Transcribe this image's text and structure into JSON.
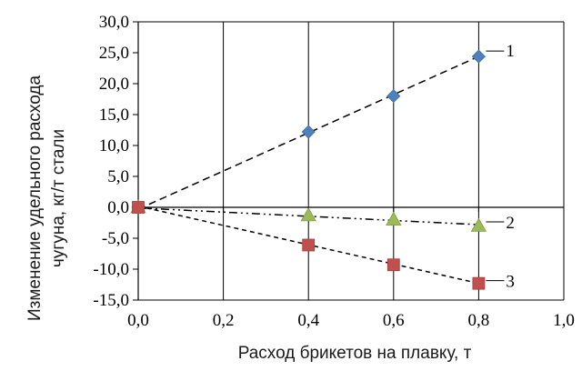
{
  "chart_data": {
    "type": "scatter",
    "title": "",
    "xlabel": "Расход брикетов на плавку, т",
    "ylabel_lines": [
      "Изменение удельного расхода",
      "чугуна, кг/т стали"
    ],
    "xlim": [
      0,
      1.0
    ],
    "ylim": [
      -15,
      30
    ],
    "x_ticks": [
      0,
      0.2,
      0.4,
      0.6,
      0.8,
      1.0
    ],
    "x_tick_labels": [
      "0,0",
      "0,2",
      "0,4",
      "0,6",
      "0,8",
      "1,0"
    ],
    "y_ticks": [
      30,
      25,
      20,
      15,
      10,
      5,
      0,
      -5,
      -10,
      -15
    ],
    "y_tick_labels": [
      "30,0",
      "25,0",
      "20,0",
      "15,0",
      "10,0",
      "5,0",
      "0,0",
      "-5,0",
      "-10,0",
      "-15,0"
    ],
    "grid": "vertical",
    "legend": "inline-labels",
    "series": [
      {
        "label": "1",
        "marker": "diamond",
        "color": "#4f81bd",
        "line_style": "dashed",
        "x": [
          0,
          0.4,
          0.6,
          0.8
        ],
        "y": [
          0,
          12.2,
          18.0,
          24.4
        ],
        "trend": [
          [
            0,
            -0.3
          ],
          [
            0.8,
            24.4
          ]
        ]
      },
      {
        "label": "2",
        "marker": "triangle",
        "color": "#9bbb59",
        "line_style": "dash-dot-dot",
        "x": [
          0,
          0.4,
          0.6,
          0.8
        ],
        "y": [
          0,
          -1.3,
          -2.0,
          -3.0
        ],
        "trend": [
          [
            0,
            -0.1
          ],
          [
            0.8,
            -2.8
          ]
        ]
      },
      {
        "label": "3",
        "marker": "square",
        "color": "#c0504d",
        "line_style": "dotted-dash",
        "x": [
          0,
          0.4,
          0.6,
          0.8
        ],
        "y": [
          0,
          -6.1,
          -9.3,
          -12.3
        ],
        "trend": [
          [
            0,
            0.2
          ],
          [
            0.8,
            -12.3
          ]
        ]
      }
    ]
  }
}
